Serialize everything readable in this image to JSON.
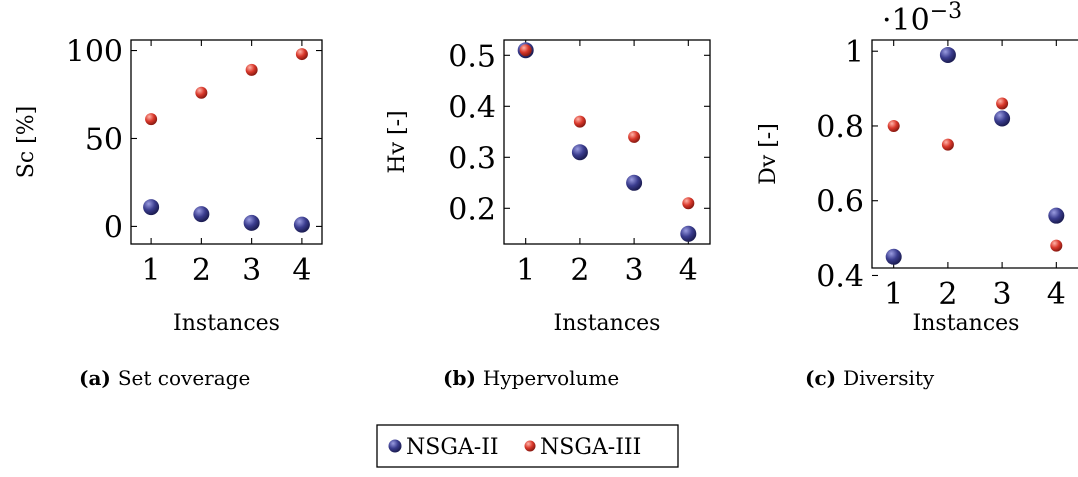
{
  "colors": {
    "nsga2": "#3b3d8f",
    "nsga3": "#d9382b"
  },
  "legend": {
    "entries": [
      "NSGA-II",
      "NSGA-III"
    ]
  },
  "chart_data": [
    {
      "type": "scatter",
      "caption_letter": "(a)",
      "caption_text": "Set coverage",
      "xlabel": "Instances",
      "ylabel": "Sc [%]",
      "x": [
        1,
        2,
        3,
        4
      ],
      "xticks": [
        "1",
        "2",
        "3",
        "4"
      ],
      "yticks": [
        "0",
        "50",
        "100"
      ],
      "ytick_values": [
        0,
        50,
        100
      ],
      "xlim": [
        0.6,
        4.4
      ],
      "ylim": [
        -10,
        106
      ],
      "exponent": "",
      "series": [
        {
          "name": "NSGA-II",
          "values": [
            11,
            7,
            2,
            1
          ]
        },
        {
          "name": "NSGA-III",
          "values": [
            61,
            76,
            89,
            98
          ]
        }
      ]
    },
    {
      "type": "scatter",
      "caption_letter": "(b)",
      "caption_text": "Hypervolume",
      "xlabel": "Instances",
      "ylabel": "Hv [-]",
      "x": [
        1,
        2,
        3,
        4
      ],
      "xticks": [
        "1",
        "2",
        "3",
        "4"
      ],
      "yticks": [
        "0.2",
        "0.3",
        "0.4",
        "0.5"
      ],
      "ytick_values": [
        0.2,
        0.3,
        0.4,
        0.5
      ],
      "xlim": [
        0.6,
        4.4
      ],
      "ylim": [
        0.13,
        0.53
      ],
      "exponent": "",
      "series": [
        {
          "name": "NSGA-II",
          "values": [
            0.51,
            0.31,
            0.25,
            0.15
          ]
        },
        {
          "name": "NSGA-III",
          "values": [
            0.51,
            0.37,
            0.34,
            0.21
          ]
        }
      ]
    },
    {
      "type": "scatter",
      "caption_letter": "(c)",
      "caption_text": "Diversity",
      "xlabel": "Instances",
      "ylabel": "Dv [-]",
      "x": [
        1,
        2,
        3,
        4
      ],
      "xticks": [
        "1",
        "2",
        "3",
        "4"
      ],
      "yticks": [
        "0.4",
        "0.6",
        "0.8",
        "1"
      ],
      "ytick_values": [
        0.4,
        0.6,
        0.8,
        1.0
      ],
      "xlim": [
        0.6,
        4.4
      ],
      "ylim": [
        0.42,
        1.03
      ],
      "exponent": "·10",
      "exponent_power": "−3",
      "series": [
        {
          "name": "NSGA-II",
          "values": [
            0.45,
            0.99,
            0.82,
            0.56
          ]
        },
        {
          "name": "NSGA-III",
          "values": [
            0.8,
            0.75,
            0.86,
            0.48
          ]
        }
      ]
    }
  ]
}
